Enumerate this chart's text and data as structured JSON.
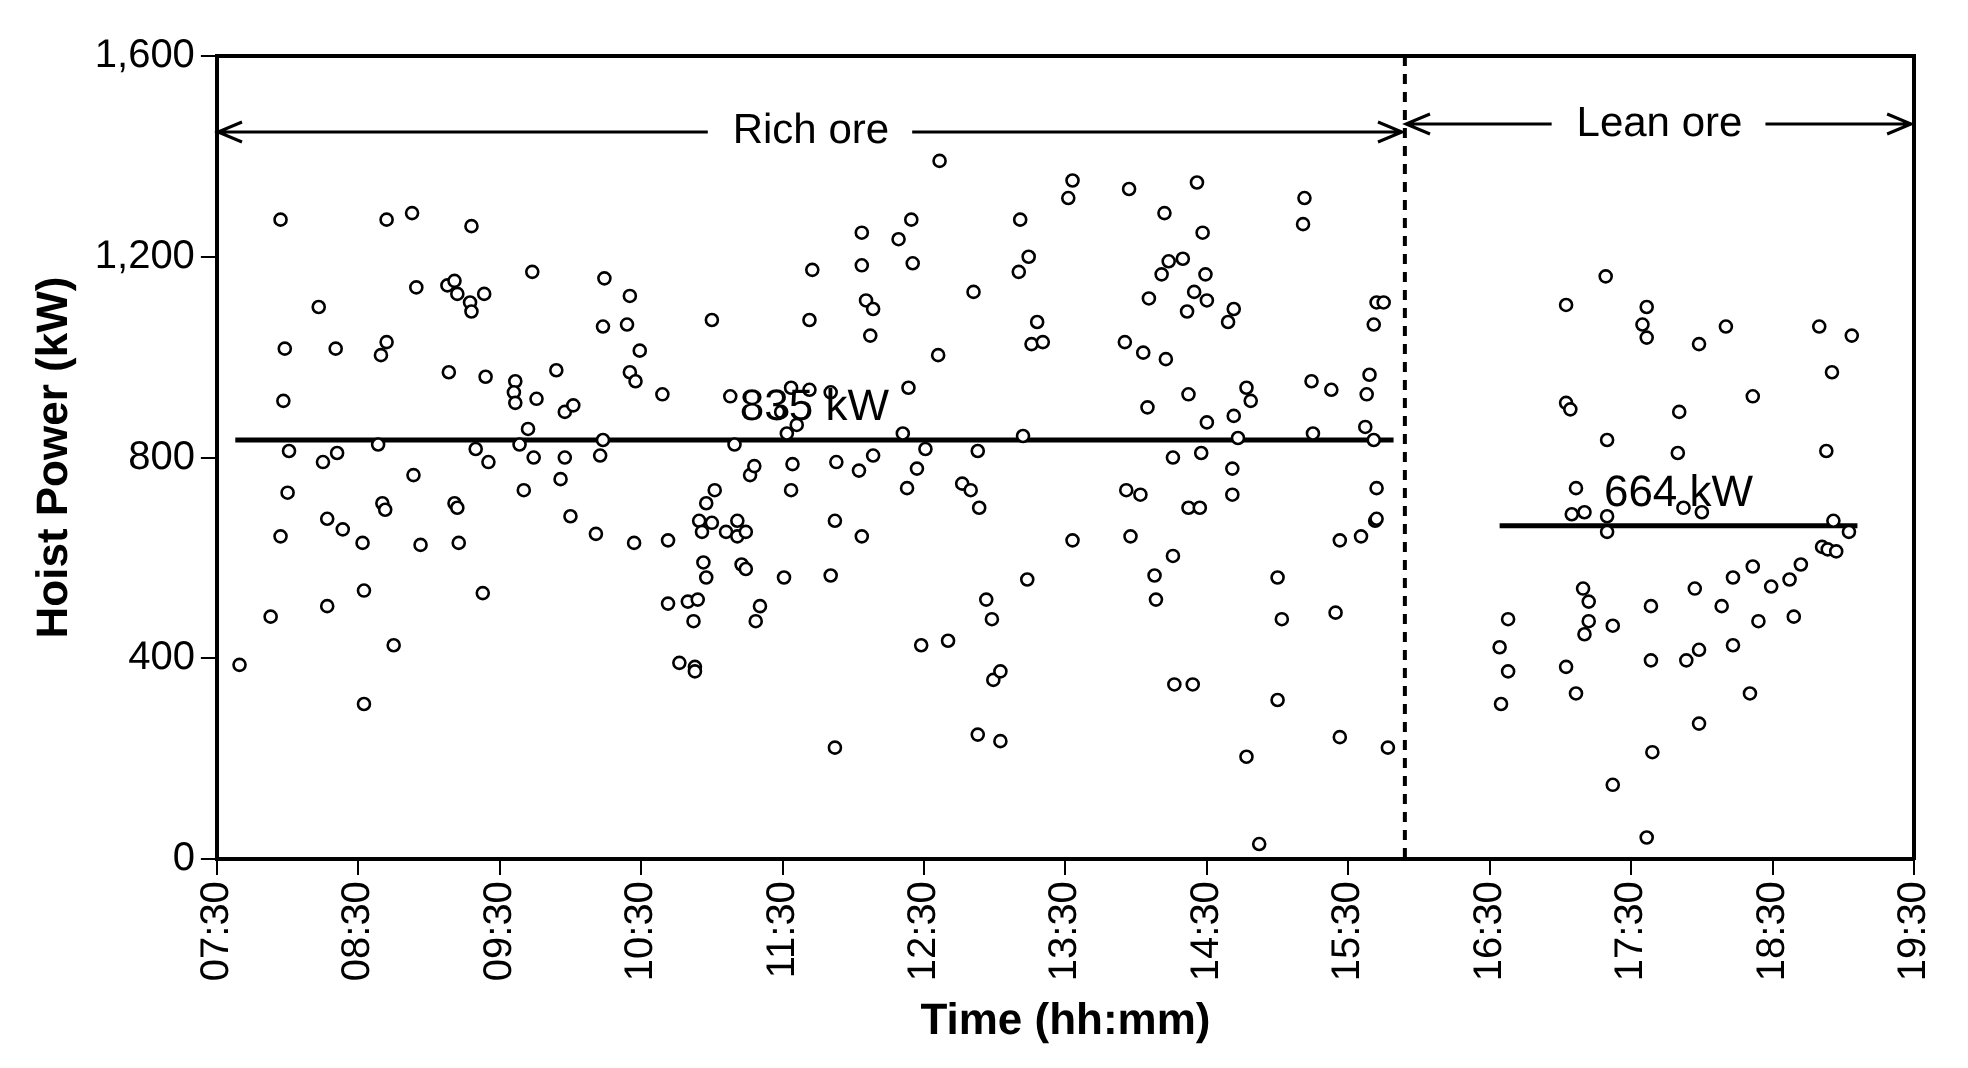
{
  "chart_data": {
    "type": "scatter",
    "xlabel": "Time (hh:mm)",
    "ylabel": "Hoist Power (kW)",
    "xlim": [
      7.5,
      19.5
    ],
    "xticks": [
      {
        "value": 7.5,
        "label": "07:30"
      },
      {
        "value": 8.5,
        "label": "08:30"
      },
      {
        "value": 9.5,
        "label": "09:30"
      },
      {
        "value": 10.5,
        "label": "10:30"
      },
      {
        "value": 11.5,
        "label": "11:30"
      },
      {
        "value": 12.5,
        "label": "12:30"
      },
      {
        "value": 13.5,
        "label": "13:30"
      },
      {
        "value": 14.5,
        "label": "14:30"
      },
      {
        "value": 15.5,
        "label": "15:30"
      },
      {
        "value": 16.5,
        "label": "16:30"
      },
      {
        "value": 17.5,
        "label": "17:30"
      },
      {
        "value": 18.5,
        "label": "18:30"
      },
      {
        "value": 19.5,
        "label": "19:30"
      }
    ],
    "ylim": [
      0,
      1600
    ],
    "yticks": [
      0,
      400,
      800,
      {
        "value": 1200,
        "label": "1,200"
      },
      {
        "value": 1600,
        "label": "1,600"
      }
    ],
    "grid": false,
    "legend": false,
    "marker": "circle",
    "series": [
      {
        "type": "scatter",
        "color": "#000000",
        "x": [
          7.66,
          7.95,
          7.98,
          7.97,
          8.01,
          8.0,
          7.95,
          7.88,
          8.22,
          8.34,
          8.25,
          8.35,
          8.28,
          8.39,
          8.28,
          8.53,
          8.54,
          8.54,
          8.7,
          8.88,
          8.91,
          8.7,
          8.66,
          8.64,
          8.67,
          8.69,
          8.75,
          8.89,
          8.94,
          9.14,
          9.13,
          9.18,
          9.2,
          9.29,
          9.3,
          9.3,
          9.39,
          9.4,
          9.33,
          9.42,
          9.18,
          9.2,
          9.21,
          9.38,
          9.61,
          9.6,
          9.61,
          9.76,
          9.7,
          9.64,
          9.74,
          9.67,
          9.73,
          9.9,
          9.96,
          10.02,
          9.96,
          9.93,
          10.0,
          10.18,
          10.21,
          10.23,
          10.23,
          10.24,
          10.4,
          10.42,
          10.49,
          10.42,
          10.46,
          10.45,
          10.65,
          10.69,
          10.69,
          11.0,
          11.13,
          11.16,
          10.77,
          10.88,
          10.88,
          10.83,
          10.87,
          10.9,
          10.96,
          10.94,
          10.91,
          10.93,
          10.96,
          11.02,
          11.0,
          11.18,
          11.1,
          11.18,
          11.24,
          11.27,
          11.3,
          11.21,
          11.24,
          11.34,
          11.31,
          11.51,
          11.56,
          11.57,
          11.53,
          11.49,
          11.6,
          11.56,
          11.69,
          11.69,
          11.71,
          11.87,
          11.84,
          11.87,
          11.88,
          11.84,
          12.06,
          12.04,
          12.14,
          12.06,
          12.06,
          12.09,
          12.14,
          12.12,
          12.32,
          12.41,
          12.42,
          12.39,
          12.35,
          12.45,
          12.38,
          12.51,
          12.48,
          12.61,
          12.6,
          12.67,
          12.77,
          12.83,
          12.89,
          12.88,
          12.85,
          12.94,
          12.98,
          12.99,
          13.04,
          12.88,
          13.04,
          13.18,
          13.24,
          13.17,
          13.3,
          13.26,
          13.34,
          13.2,
          13.23,
          13.55,
          13.52,
          13.55,
          13.95,
          14.2,
          14.43,
          14.47,
          14.18,
          14.23,
          14.33,
          14.49,
          14.09,
          14.41,
          14.5,
          14.36,
          14.69,
          14.65,
          13.92,
          14.05,
          14.21,
          14.08,
          14.37,
          14.5,
          14.78,
          14.81,
          14.69,
          14.72,
          14.46,
          14.26,
          14.68,
          14.68,
          13.93,
          14.03,
          14.37,
          14.45,
          13.96,
          14.26,
          14.13,
          14.14,
          14.27,
          14.4,
          15.0,
          15.03,
          15.0,
          14.78,
          14.87,
          15.19,
          15.18,
          15.24,
          15.38,
          15.25,
          15.41,
          15.44,
          15.44,
          15.59,
          15.63,
          15.65,
          15.68,
          15.7,
          15.62,
          15.68,
          15.7,
          15.69,
          15.75,
          15.78,
          15.7,
          16.63,
          16.57,
          16.63,
          16.58,
          17.04,
          17.04,
          17.07,
          17.11,
          17.08,
          17.17,
          17.16,
          17.2,
          17.2,
          17.17,
          17.04,
          17.11,
          17.32,
          17.33,
          17.33,
          17.33,
          17.37,
          17.37,
          17.61,
          17.58,
          17.61,
          17.64,
          17.64,
          17.65,
          17.61,
          17.98,
          18.17,
          17.84,
          17.83,
          17.87,
          18.0,
          17.95,
          17.98,
          17.89,
          17.98,
          18.14,
          18.22,
          18.22,
          18.36,
          18.4,
          18.36,
          18.34,
          18.49,
          18.62,
          18.7,
          18.65,
          18.83,
          19.06,
          18.92,
          18.88,
          18.93,
          19.04,
          18.85,
          18.89,
          18.95
        ],
        "values": [
          387,
          1274,
          1017,
          913,
          813,
          730,
          643,
          483,
          1100,
          1017,
          791,
          809,
          678,
          657,
          504,
          630,
          535,
          309,
          1274,
          1287,
          1139,
          1030,
          1004,
          826,
          709,
          696,
          426,
          765,
          626,
          970,
          1143,
          1152,
          1126,
          1109,
          1091,
          1261,
          1126,
          961,
          817,
          791,
          709,
          700,
          630,
          530,
          952,
          930,
          909,
          917,
          857,
          826,
          800,
          735,
          1170,
          974,
          891,
          904,
          800,
          757,
          683,
          648,
          804,
          835,
          1061,
          1157,
          1065,
          1122,
          1013,
          970,
          952,
          630,
          926,
          635,
          509,
          1074,
          922,
          826,
          391,
          383,
          374,
          513,
          474,
          517,
          561,
          591,
          674,
          652,
          709,
          735,
          670,
          674,
          652,
          643,
          652,
          765,
          783,
          587,
          578,
          504,
          474,
          561,
          735,
          787,
          848,
          891,
          865,
          939,
          935,
          1074,
          1174,
          222,
          565,
          674,
          791,
          930,
          643,
          774,
          804,
          1248,
          1183,
          1113,
          1096,
          1043,
          1235,
          1274,
          1187,
          939,
          848,
          778,
          739,
          817,
          426,
          1391,
          1004,
          435,
          748,
          735,
          700,
          813,
          1130,
          517,
          478,
          357,
          374,
          248,
          235,
          1274,
          1200,
          1170,
          1070,
          1026,
          1030,
          843,
          557,
          635,
          1317,
          1352,
          1335,
          1287,
          1348,
          1248,
          1165,
          1191,
          1196,
          1165,
          1117,
          1130,
          1113,
          1091,
          1096,
          1070,
          1030,
          1009,
          996,
          900,
          926,
          870,
          939,
          913,
          883,
          839,
          809,
          800,
          778,
          726,
          735,
          726,
          700,
          700,
          643,
          604,
          565,
          517,
          348,
          348,
          561,
          478,
          317,
          204,
          30,
          1317,
          1265,
          952,
          935,
          848,
          491,
          243,
          635,
          643,
          926,
          965,
          1065,
          1109,
          861,
          835,
          739,
          674,
          1109,
          222,
          678,
          478,
          422,
          374,
          309,
          1104,
          909,
          896,
          739,
          687,
          691,
          539,
          513,
          474,
          448,
          383,
          330,
          1161,
          835,
          683,
          652,
          465,
          148,
          1100,
          1065,
          1039,
          504,
          396,
          213,
          43,
          1026,
          1061,
          891,
          809,
          700,
          691,
          539,
          417,
          396,
          270,
          504,
          561,
          426,
          583,
          474,
          922,
          330,
          543,
          557,
          587,
          483,
          1061,
          1043,
          970,
          813,
          674,
          652,
          622,
          617,
          613
        ]
      },
      {
        "type": "line",
        "color": "#000000",
        "marker": "none",
        "x": [
          7.63,
          15.82
        ],
        "values": [
          835,
          835
        ]
      },
      {
        "type": "line",
        "color": "#000000",
        "marker": "none",
        "x": [
          16.57,
          19.1
        ],
        "values": [
          664,
          664
        ]
      }
    ],
    "annotations": [
      {
        "text": "Rich ore",
        "x": 15.9,
        "y": 1450
      },
      "Lean ore",
      "835 kW",
      "664 kW"
    ],
    "ref_lines": [
      {
        "axis": "x",
        "value": 15.9,
        "line_style": "dashed",
        "color": "#000000"
      }
    ]
  }
}
